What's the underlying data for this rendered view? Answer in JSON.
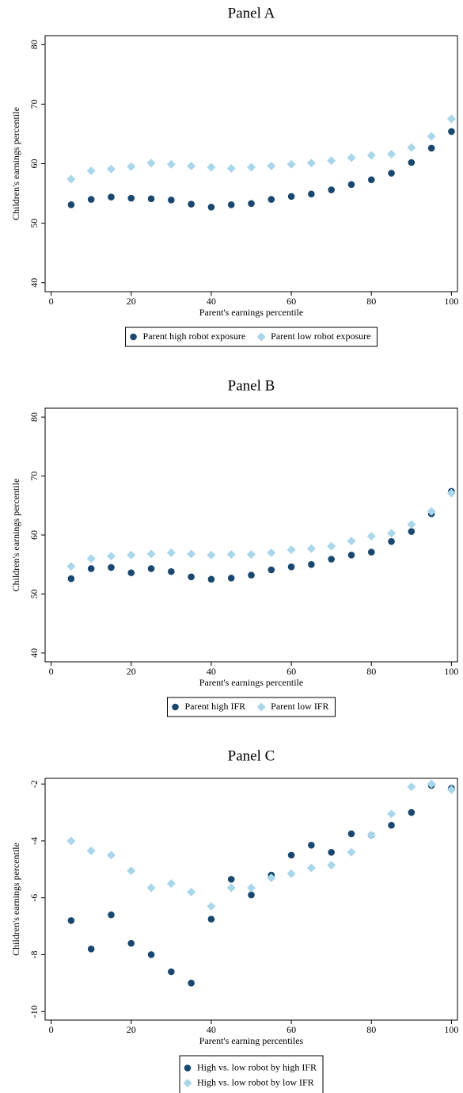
{
  "chart_data": [
    {
      "type": "scatter",
      "title": "Panel A",
      "x_label": "Parent's earnings percentile",
      "y_label": "Children's earnings percentile",
      "x": [
        5,
        10,
        15,
        20,
        25,
        30,
        35,
        40,
        45,
        50,
        55,
        60,
        65,
        70,
        75,
        80,
        85,
        90,
        95,
        100
      ],
      "series": [
        {
          "name": "Parent high robot exposure",
          "color": "#1a476f",
          "marker": "circle",
          "values": [
            53.1,
            54.0,
            54.4,
            54.2,
            54.1,
            53.9,
            53.2,
            52.7,
            53.1,
            53.3,
            54.0,
            54.5,
            54.9,
            55.6,
            56.5,
            57.3,
            58.4,
            60.2,
            62.6,
            65.4
          ]
        },
        {
          "name": "Parent low robot exposure",
          "color": "#a9d6ea",
          "marker": "diamond",
          "values": [
            57.4,
            58.8,
            59.1,
            59.5,
            60.1,
            59.9,
            59.6,
            59.4,
            59.2,
            59.4,
            59.6,
            59.9,
            60.1,
            60.5,
            61.0,
            61.4,
            61.6,
            62.7,
            64.6,
            67.5
          ]
        }
      ],
      "xlim": [
        -1.5,
        101.5
      ],
      "xticks": [
        0,
        20,
        40,
        60,
        80,
        100
      ],
      "ylim": [
        38.5,
        81.5
      ],
      "yticks": [
        40,
        50,
        60,
        70,
        80
      ],
      "legend_rows": 1
    },
    {
      "type": "scatter",
      "title": "Panel B",
      "x_label": "Parent's earnings percentile",
      "y_label": "Children's earnings percentile",
      "x": [
        5,
        10,
        15,
        20,
        25,
        30,
        35,
        40,
        45,
        50,
        55,
        60,
        65,
        70,
        75,
        80,
        85,
        90,
        95,
        100
      ],
      "series": [
        {
          "name": "Parent high IFR",
          "color": "#1a476f",
          "marker": "circle",
          "values": [
            52.6,
            54.3,
            54.5,
            53.6,
            54.3,
            53.8,
            52.9,
            52.5,
            52.7,
            53.2,
            54.1,
            54.6,
            55.0,
            55.9,
            56.6,
            57.1,
            58.9,
            60.6,
            63.6,
            67.4
          ]
        },
        {
          "name": "Parent low IFR",
          "color": "#a9d6ea",
          "marker": "diamond",
          "values": [
            54.7,
            56.0,
            56.4,
            56.6,
            56.8,
            57.0,
            56.8,
            56.6,
            56.7,
            56.7,
            57.0,
            57.5,
            57.7,
            58.1,
            59.0,
            59.8,
            60.3,
            61.8,
            64.0,
            67.1
          ]
        }
      ],
      "xlim": [
        -1.5,
        101.5
      ],
      "xticks": [
        0,
        20,
        40,
        60,
        80,
        100
      ],
      "ylim": [
        38.5,
        81.5
      ],
      "yticks": [
        40,
        50,
        60,
        70,
        80
      ],
      "legend_rows": 1
    },
    {
      "type": "scatter",
      "title": "Panel C",
      "x_label": "Parent's earning percentiles",
      "y_label": "Children's earnings percentile",
      "x": [
        5,
        10,
        15,
        20,
        25,
        30,
        35,
        40,
        45,
        50,
        55,
        60,
        65,
        70,
        75,
        80,
        85,
        90,
        95,
        100
      ],
      "series": [
        {
          "name": "High vs. low robot by high IFR",
          "color": "#1a476f",
          "marker": "circle",
          "values": [
            -6.8,
            -7.8,
            -6.6,
            -7.6,
            -8.0,
            -8.6,
            -9.0,
            -6.75,
            -5.35,
            -5.9,
            -5.2,
            -4.5,
            -4.15,
            -4.4,
            -3.75,
            -3.8,
            -3.45,
            -3.0,
            -2.05,
            -2.15
          ]
        },
        {
          "name": "High vs. low robot by low IFR",
          "color": "#a9d6ea",
          "marker": "diamond",
          "values": [
            -4.0,
            -4.35,
            -4.5,
            -5.05,
            -5.65,
            -5.5,
            -5.8,
            -6.3,
            -5.65,
            -5.65,
            -5.3,
            -5.15,
            -4.95,
            -4.85,
            -4.4,
            -3.8,
            -3.05,
            -2.1,
            -2.0,
            -2.2
          ]
        }
      ],
      "xlim": [
        -1.5,
        101.5
      ],
      "xticks": [
        0,
        20,
        40,
        60,
        80,
        100
      ],
      "ylim": [
        -10.3,
        -1.8
      ],
      "yticks": [
        -2,
        -4,
        -6,
        -8,
        -10
      ],
      "legend_rows": 2
    }
  ]
}
